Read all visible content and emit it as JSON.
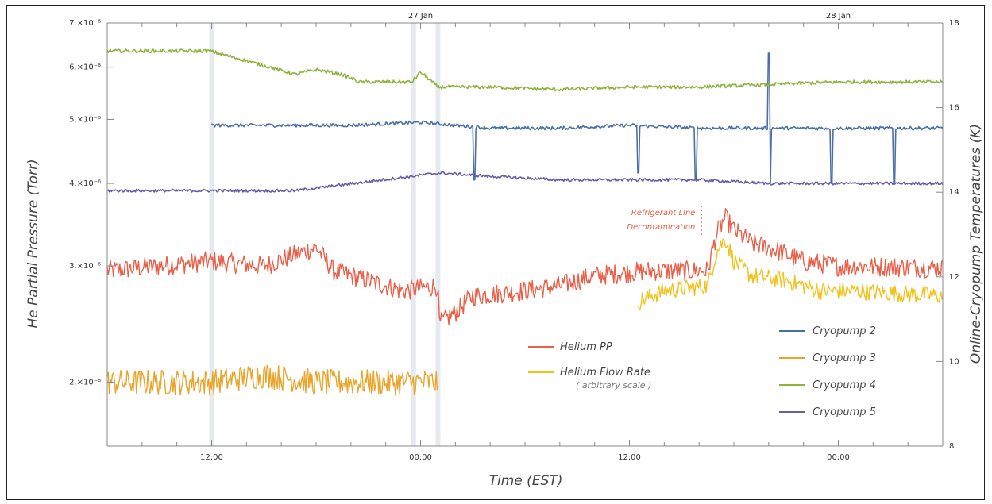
{
  "chart_data": {
    "type": "line",
    "title": "",
    "xlabel": "Time (EST)",
    "ylabel_left": "He Partial Pressure (Torr)",
    "ylabel_right": "Online-Cryopump Temperatures (K)",
    "x_unit": "hours since 26 Jan 06:00 EST",
    "xlim": [
      0,
      48
    ],
    "x_ticks": [
      {
        "x": 6,
        "label": "12:00"
      },
      {
        "x": 18,
        "label": "00:00"
      },
      {
        "x": 30,
        "label": "12:00"
      },
      {
        "x": 42,
        "label": "00:00"
      }
    ],
    "date_labels": [
      {
        "x": 18,
        "label": "27 Jan"
      },
      {
        "x": 42,
        "label": "28 Jan"
      }
    ],
    "left_axis": {
      "scale": "log",
      "ylim": [
        1.6e-06,
        7e-06
      ],
      "ticks": [
        {
          "value": 2e-06,
          "label": "2.×10⁻⁶"
        },
        {
          "value": 3e-06,
          "label": "3.×10⁻⁶"
        },
        {
          "value": 4e-06,
          "label": "4.×10⁻⁶"
        },
        {
          "value": 5e-06,
          "label": "5.×10⁻⁶"
        },
        {
          "value": 6e-06,
          "label": "6.×10⁻⁶"
        },
        {
          "value": 7e-06,
          "label": "7.×10⁻⁶"
        }
      ]
    },
    "right_axis": {
      "ylim": [
        8,
        18
      ],
      "ticks": [
        {
          "value": 8,
          "label": "8"
        },
        {
          "value": 10,
          "label": "10"
        },
        {
          "value": 12,
          "label": "12"
        },
        {
          "value": 14,
          "label": "14"
        },
        {
          "value": 16,
          "label": "16"
        },
        {
          "value": 18,
          "label": "18"
        }
      ]
    },
    "vertical_markers": [
      6,
      17.6,
      19.0
    ],
    "series": [
      {
        "name": "Helium PP",
        "axis": "left",
        "color": "#e8604a",
        "noise": 0.035,
        "points": [
          [
            0,
            2.95e-06
          ],
          [
            3,
            3e-06
          ],
          [
            6,
            3.05e-06
          ],
          [
            9,
            3e-06
          ],
          [
            12,
            3.2e-06
          ],
          [
            13,
            2.95e-06
          ],
          [
            15,
            2.85e-06
          ],
          [
            17,
            2.75e-06
          ],
          [
            19.0,
            2.8e-06
          ],
          [
            19.05,
            2.45e-06
          ],
          [
            20,
            2.55e-06
          ],
          [
            21,
            2.7e-06
          ],
          [
            24,
            2.75e-06
          ],
          [
            26,
            2.8e-06
          ],
          [
            28,
            2.9e-06
          ],
          [
            31,
            2.95e-06
          ],
          [
            33,
            2.95e-06
          ],
          [
            34.5,
            2.95e-06
          ],
          [
            35.0,
            3.35e-06
          ],
          [
            35.5,
            3.55e-06
          ],
          [
            36,
            3.4e-06
          ],
          [
            37,
            3.25e-06
          ],
          [
            38,
            3.2e-06
          ],
          [
            40,
            3.05e-06
          ],
          [
            42,
            3e-06
          ],
          [
            48,
            2.98e-06
          ]
        ]
      },
      {
        "name": "Helium Flow Rate",
        "axis": "left",
        "color": "#f2c21b",
        "noise": 0.03,
        "points": [
          [
            30.5,
            2.65e-06
          ],
          [
            32,
            2.75e-06
          ],
          [
            34.5,
            2.8e-06
          ],
          [
            35,
            3.15e-06
          ],
          [
            35.5,
            3.3e-06
          ],
          [
            36,
            3.05e-06
          ],
          [
            37,
            2.9e-06
          ],
          [
            39,
            2.85e-06
          ],
          [
            41,
            2.75e-06
          ],
          [
            43,
            2.75e-06
          ],
          [
            48,
            2.7e-06
          ]
        ]
      },
      {
        "name": "Cryopump 3",
        "axis": "left",
        "color": "#e8a52c",
        "noise": 0.045,
        "points": [
          [
            0,
            2e-06
          ],
          [
            3,
            2e-06
          ],
          [
            6,
            2e-06
          ],
          [
            9,
            2.05e-06
          ],
          [
            12,
            2e-06
          ],
          [
            15,
            2e-06
          ],
          [
            19,
            2e-06
          ]
        ]
      },
      {
        "name": "Cryopump 2",
        "axis": "left",
        "color": "#4a6fa5",
        "noise": 0.006,
        "points": [
          [
            6,
            4.9e-06
          ],
          [
            10,
            4.9e-06
          ],
          [
            14,
            4.9e-06
          ],
          [
            18,
            4.95e-06
          ],
          [
            22,
            4.85e-06
          ],
          [
            26,
            4.85e-06
          ],
          [
            30,
            4.9e-06
          ],
          [
            34,
            4.85e-06
          ],
          [
            38,
            4.85e-06
          ],
          [
            42,
            4.85e-06
          ],
          [
            48,
            4.85e-06
          ]
        ],
        "dips": [
          [
            21.1,
            4.05e-06
          ],
          [
            30.5,
            4.15e-06
          ],
          [
            33.8,
            4.05e-06
          ],
          [
            38.0,
            6.3e-06
          ],
          [
            38.1,
            4e-06
          ],
          [
            41.6,
            4e-06
          ],
          [
            45.2,
            4e-06
          ]
        ]
      },
      {
        "name": "Cryopump 4",
        "axis": "left",
        "color": "#8db33a",
        "noise": 0.006,
        "points": [
          [
            0,
            6.35e-06
          ],
          [
            3,
            6.35e-06
          ],
          [
            5.9,
            6.35e-06
          ],
          [
            10.8,
            5.85e-06
          ],
          [
            12,
            5.95e-06
          ],
          [
            13.5,
            5.85e-06
          ],
          [
            14.5,
            5.7e-06
          ],
          [
            17.5,
            5.7e-06
          ],
          [
            18,
            5.9e-06
          ],
          [
            19,
            5.6e-06
          ],
          [
            22,
            5.6e-06
          ],
          [
            26,
            5.55e-06
          ],
          [
            30,
            5.6e-06
          ],
          [
            34,
            5.6e-06
          ],
          [
            38,
            5.65e-06
          ],
          [
            42,
            5.7e-06
          ],
          [
            48,
            5.7e-06
          ]
        ]
      },
      {
        "name": "Cryopump 5",
        "axis": "left",
        "color": "#6a5aa8",
        "noise": 0.005,
        "points": [
          [
            0,
            3.9e-06
          ],
          [
            3,
            3.9e-06
          ],
          [
            6,
            3.9e-06
          ],
          [
            9,
            3.9e-06
          ],
          [
            10.8,
            3.9e-06
          ],
          [
            19.1,
            4.15e-06
          ],
          [
            22,
            4.1e-06
          ],
          [
            26,
            4.05e-06
          ],
          [
            30,
            4.05e-06
          ],
          [
            34,
            4.05e-06
          ],
          [
            38,
            4e-06
          ],
          [
            42,
            4e-06
          ],
          [
            48,
            4e-06
          ]
        ]
      }
    ],
    "legend": {
      "placement": "bottom-right",
      "left_entries": [
        {
          "name": "Helium PP",
          "color": "#e8604a"
        },
        {
          "name": "Helium Flow Rate",
          "color": "#f2c21b",
          "sub": "( arbitrary scale )"
        }
      ],
      "right_entries": [
        {
          "name": "Cryopump 2",
          "color": "#4a6fa5"
        },
        {
          "name": "Cryopump 3",
          "color": "#e8a52c"
        },
        {
          "name": "Cryopump 4",
          "color": "#8db33a"
        },
        {
          "name": "Cryopump 5",
          "color": "#6a5aa8"
        }
      ]
    },
    "annotation": {
      "lines": [
        "Refrigerant Line",
        "Decontamination"
      ],
      "x": 34.6,
      "y": 3.35e-06,
      "color": "#e8604a"
    },
    "grid": false
  }
}
